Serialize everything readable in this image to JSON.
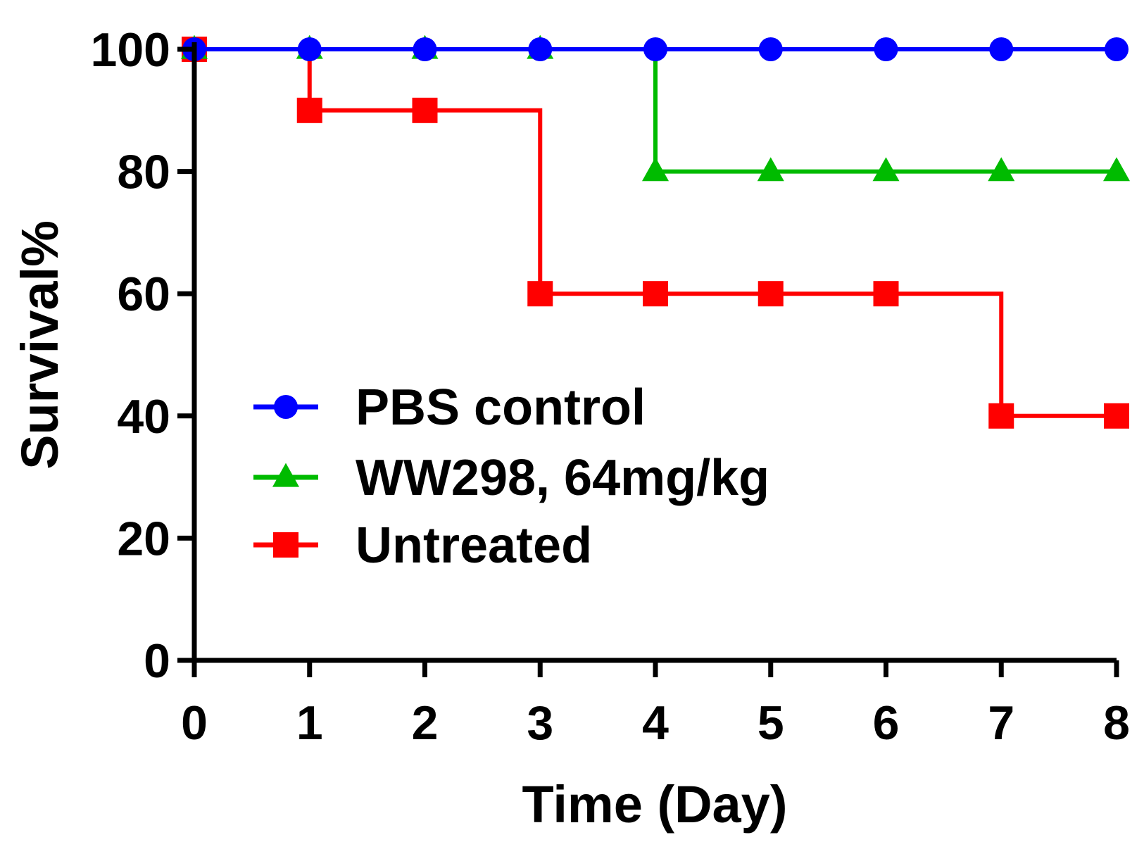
{
  "chart_data": {
    "type": "line",
    "style": "step",
    "title": "",
    "xlabel": "Time (Day)",
    "ylabel": "Survival%",
    "xlim": [
      0,
      8
    ],
    "ylim": [
      0,
      100
    ],
    "xticks": [
      0,
      1,
      2,
      3,
      4,
      5,
      6,
      7,
      8
    ],
    "yticks": [
      0,
      20,
      40,
      60,
      80,
      100
    ],
    "grid": false,
    "legend_position": "center-left",
    "series": [
      {
        "name": "PBS control",
        "color": "#0000ff",
        "marker": "circle",
        "x": [
          0,
          1,
          2,
          3,
          4,
          5,
          6,
          7,
          8
        ],
        "values": [
          100,
          100,
          100,
          100,
          100,
          100,
          100,
          100,
          100
        ]
      },
      {
        "name": "WW298, 64mg/kg",
        "color": "#00bb00",
        "marker": "triangle",
        "x": [
          0,
          1,
          2,
          3,
          4,
          5,
          6,
          7,
          8
        ],
        "values": [
          100,
          100,
          100,
          100,
          80,
          80,
          80,
          80,
          80
        ]
      },
      {
        "name": "Untreated",
        "color": "#ff0000",
        "marker": "square",
        "x": [
          0,
          1,
          2,
          3,
          4,
          5,
          6,
          7,
          8
        ],
        "values": [
          100,
          90,
          90,
          60,
          60,
          60,
          60,
          40,
          40
        ]
      }
    ]
  }
}
